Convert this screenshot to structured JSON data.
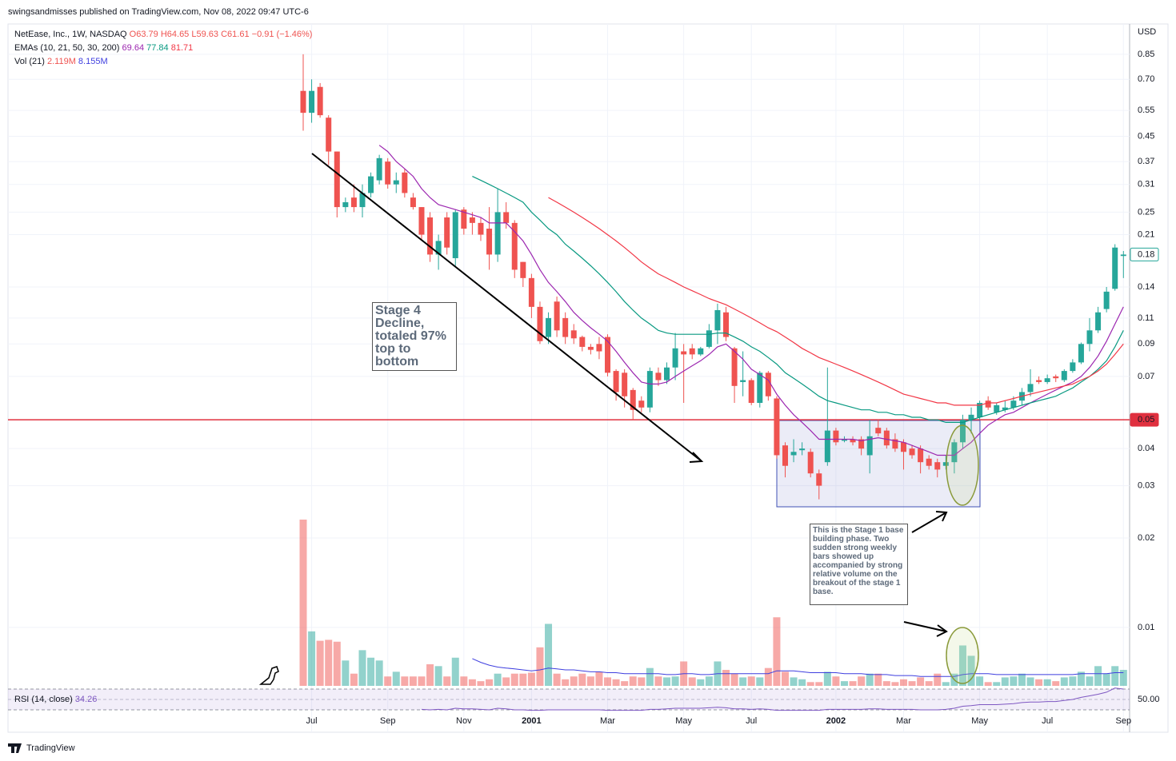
{
  "header": "swingsandmisses published on TradingView.com, Nov 08, 2022 09:47 UTC-6",
  "footer": "TradingView",
  "chart_data": {
    "type": "candlestick",
    "log_scale": true,
    "grid": true,
    "currency": "USD",
    "legend": {
      "symbol": "NetEase, Inc., 1W, NASDAQ",
      "open": "O63.79",
      "high": "H64.65",
      "low": "L59.63",
      "close": "C61.61",
      "change": "−0.91 (−1.46%)",
      "emas": "EMAs (10, 21, 50, 30, 200)",
      "volume": "Vol (21)",
      "volume_values": [
        "2.119M",
        "8.155M"
      ]
    },
    "up_color": "#26a69a",
    "down_color": "#ef5350",
    "ylim": [
      0.00628,
      1.075
    ],
    "yticks": [
      0.85,
      {
        "value": 0.7,
        "label": "0.70"
      },
      0.55,
      0.45,
      0.37,
      0.31,
      0.25,
      0.21,
      0.14,
      0.11,
      0.09,
      0.07,
      0.04,
      0.03,
      0.02,
      0.01
    ],
    "hline": 0.05,
    "last_price": 0.18,
    "categories": [
      null,
      "Jul",
      null,
      null,
      null,
      null,
      null,
      null,
      null,
      null,
      "Sep",
      null,
      null,
      null,
      null,
      null,
      null,
      null,
      null,
      "Nov",
      null,
      null,
      null,
      null,
      null,
      null,
      null,
      "2001",
      null,
      null,
      null,
      null,
      null,
      null,
      null,
      null,
      "Mar",
      null,
      null,
      null,
      null,
      null,
      null,
      null,
      null,
      "May",
      null,
      null,
      null,
      null,
      null,
      null,
      null,
      "Jul",
      null,
      null,
      null,
      null,
      null,
      null,
      null,
      null,
      null,
      "2002",
      null,
      null,
      null,
      null,
      null,
      null,
      null,
      "Mar",
      null,
      null,
      null,
      null,
      null,
      null,
      null,
      null,
      "May",
      null,
      null,
      null,
      null,
      null,
      null,
      null,
      "Jul",
      null,
      null,
      null,
      null,
      null,
      null,
      null,
      null,
      "Sep"
    ],
    "open": [
      0.64,
      0.54,
      0.66,
      0.52,
      0.4,
      0.26,
      0.28,
      0.26,
      0.29,
      0.32,
      0.37,
      0.31,
      0.34,
      0.28,
      0.26,
      0.24,
      0.18,
      0.24,
      0.175,
      0.255,
      0.24,
      0.23,
      0.22,
      0.18,
      0.25,
      0.23,
      0.17,
      0.15,
      0.12,
      0.095,
      0.125,
      0.11,
      0.1,
      0.095,
      0.088,
      0.09,
      0.095,
      0.073,
      0.072,
      0.063,
      0.058,
      0.055,
      0.072,
      0.068,
      0.075,
      0.085,
      0.087,
      0.083,
      0.088,
      0.1,
      0.115,
      0.087,
      0.067,
      0.068,
      0.057,
      0.072,
      0.059,
      0.041,
      0.038,
      0.0395,
      0.039,
      0.033,
      0.036,
      0.046,
      0.0425,
      0.043,
      0.043,
      0.038,
      0.047,
      0.046,
      0.043,
      0.042,
      0.04,
      0.04,
      0.037,
      0.036,
      0.035,
      0.036,
      0.042,
      0.05,
      0.051,
      0.058,
      0.053,
      0.054,
      0.055,
      0.058,
      0.062,
      0.068,
      0.067,
      0.07,
      0.068,
      0.073,
      0.078,
      0.09,
      0.1,
      0.118,
      0.138,
      0.178
    ],
    "high": [
      0.85,
      0.7,
      0.68,
      0.53,
      0.4,
      0.28,
      0.31,
      0.31,
      0.34,
      0.39,
      0.38,
      0.34,
      0.35,
      0.29,
      0.26,
      0.25,
      0.21,
      0.25,
      0.255,
      0.26,
      0.25,
      0.24,
      0.26,
      0.3,
      0.27,
      0.235,
      0.17,
      0.155,
      0.125,
      0.115,
      0.13,
      0.115,
      0.105,
      0.096,
      0.09,
      0.095,
      0.097,
      0.074,
      0.074,
      0.064,
      0.06,
      0.075,
      0.075,
      0.078,
      0.098,
      0.09,
      0.09,
      0.088,
      0.105,
      0.123,
      0.12,
      0.088,
      0.085,
      0.069,
      0.073,
      0.073,
      0.06,
      0.042,
      0.043,
      0.042,
      0.04,
      0.034,
      0.075,
      0.047,
      0.044,
      0.044,
      0.044,
      0.05,
      0.05,
      0.047,
      0.045,
      0.043,
      0.041,
      0.041,
      0.038,
      0.037,
      0.038,
      0.043,
      0.052,
      0.055,
      0.058,
      0.06,
      0.057,
      0.058,
      0.06,
      0.064,
      0.074,
      0.07,
      0.071,
      0.071,
      0.074,
      0.08,
      0.091,
      0.11,
      0.12,
      0.14,
      0.195,
      0.185
    ],
    "low": [
      0.47,
      0.5,
      0.52,
      0.36,
      0.24,
      0.25,
      0.25,
      0.24,
      0.28,
      0.31,
      0.3,
      0.29,
      0.28,
      0.255,
      0.2,
      0.17,
      0.16,
      0.18,
      0.165,
      0.21,
      0.21,
      0.2,
      0.16,
      0.17,
      0.22,
      0.15,
      0.14,
      0.11,
      0.09,
      0.09,
      0.095,
      0.09,
      0.09,
      0.085,
      0.083,
      0.08,
      0.07,
      0.058,
      0.055,
      0.05,
      0.053,
      0.053,
      0.065,
      0.066,
      0.068,
      0.057,
      0.08,
      0.082,
      0.087,
      0.09,
      0.092,
      0.057,
      0.06,
      0.056,
      0.055,
      0.058,
      0.037,
      0.032,
      0.036,
      0.038,
      0.032,
      0.027,
      0.035,
      0.041,
      0.042,
      0.041,
      0.038,
      0.033,
      0.044,
      0.04,
      0.039,
      0.034,
      0.037,
      0.033,
      0.034,
      0.032,
      0.034,
      0.033,
      0.04,
      0.045,
      0.05,
      0.054,
      0.052,
      0.053,
      0.054,
      0.056,
      0.06,
      0.066,
      0.066,
      0.067,
      0.067,
      0.072,
      0.077,
      0.085,
      0.098,
      0.115,
      0.136,
      0.15
    ],
    "close": [
      0.54,
      0.64,
      0.53,
      0.4,
      0.26,
      0.27,
      0.26,
      0.29,
      0.33,
      0.38,
      0.31,
      0.32,
      0.29,
      0.26,
      0.21,
      0.18,
      0.2,
      0.19,
      0.25,
      0.22,
      0.23,
      0.21,
      0.18,
      0.25,
      0.23,
      0.16,
      0.15,
      0.12,
      0.092,
      0.11,
      0.1,
      0.095,
      0.094,
      0.088,
      0.086,
      0.085,
      0.072,
      0.062,
      0.06,
      0.054,
      0.055,
      0.073,
      0.068,
      0.075,
      0.087,
      0.083,
      0.083,
      0.087,
      0.1,
      0.117,
      0.095,
      0.065,
      0.068,
      0.057,
      0.072,
      0.06,
      0.038,
      0.035,
      0.039,
      0.04,
      0.033,
      0.03,
      0.046,
      0.042,
      0.043,
      0.042,
      0.04,
      0.044,
      0.045,
      0.041,
      0.04,
      0.039,
      0.038,
      0.036,
      0.035,
      0.034,
      0.036,
      0.042,
      0.05,
      0.052,
      0.057,
      0.055,
      0.056,
      0.055,
      0.058,
      0.062,
      0.066,
      0.067,
      0.069,
      0.069,
      0.073,
      0.078,
      0.09,
      0.1,
      0.115,
      0.135,
      0.19,
      0.18
    ],
    "volume": [
      17.7,
      5.8,
      4.8,
      4.9,
      4.7,
      2.7,
      1.3,
      3.8,
      3.0,
      2.7,
      1.0,
      1.5,
      1.0,
      1.0,
      1.0,
      2.3,
      2.1,
      1.0,
      3.0,
      1.0,
      0.7,
      0.5,
      0.7,
      1.3,
      0.9,
      1.3,
      1.3,
      1.4,
      4.1,
      6.6,
      1.3,
      0.7,
      1.0,
      1.3,
      1.0,
      1.5,
      0.9,
      0.7,
      0.5,
      1.0,
      0.9,
      1.9,
      1.0,
      0.9,
      1.0,
      2.6,
      0.9,
      0.7,
      1.0,
      2.6,
      1.7,
      1.3,
      0.9,
      1.0,
      0.9,
      1.9,
      7.3,
      1.5,
      0.9,
      0.7,
      0.4,
      0.4,
      1.5,
      1.0,
      0.5,
      0.5,
      1.0,
      1.3,
      1.3,
      0.5,
      0.4,
      0.7,
      0.5,
      0.9,
      0.5,
      1.3,
      0.4,
      1.3,
      4.3,
      3.2,
      1.0,
      0.4,
      0.4,
      0.9,
      1.0,
      1.3,
      0.9,
      0.7,
      0.7,
      0.5,
      0.9,
      1.0,
      1.5,
      1.0,
      2.1,
      1.3,
      2.1,
      1.7
    ],
    "volume_ma": {
      "color": "#3f3fdf",
      "values": [
        null,
        null,
        null,
        null,
        null,
        null,
        null,
        null,
        null,
        null,
        null,
        null,
        null,
        null,
        null,
        null,
        null,
        null,
        null,
        null,
        2.9,
        2.5,
        2.2,
        2.0,
        1.9,
        1.8,
        1.7,
        1.6,
        1.7,
        1.9,
        1.8,
        1.7,
        1.7,
        1.6,
        1.5,
        1.5,
        1.4,
        1.4,
        1.3,
        1.3,
        1.3,
        1.3,
        1.3,
        1.2,
        1.2,
        1.3,
        1.3,
        1.2,
        1.2,
        1.3,
        1.3,
        1.3,
        1.3,
        1.3,
        1.3,
        1.3,
        1.6,
        1.6,
        1.6,
        1.5,
        1.4,
        1.4,
        1.4,
        1.4,
        1.3,
        1.3,
        1.3,
        1.2,
        1.2,
        1.2,
        1.1,
        1.1,
        1.1,
        1.0,
        1.0,
        1.0,
        1.0,
        1.0,
        1.2,
        1.3,
        1.3,
        1.3,
        1.2,
        1.2,
        1.2,
        1.2,
        1.2,
        1.2,
        1.2,
        1.2,
        1.2,
        1.2,
        1.3,
        1.3,
        1.3,
        1.3,
        1.4,
        1.4
      ]
    },
    "emas": [
      {
        "color": "#9c27b0",
        "last": 69.64,
        "values": [
          null,
          null,
          null,
          null,
          null,
          null,
          null,
          null,
          null,
          0.42,
          0.4,
          0.37,
          0.35,
          0.33,
          0.3,
          0.28,
          0.265,
          0.26,
          0.255,
          0.25,
          0.245,
          0.24,
          0.23,
          0.23,
          0.23,
          0.215,
          0.2,
          0.18,
          0.16,
          0.145,
          0.135,
          0.125,
          0.115,
          0.108,
          0.102,
          0.097,
          0.092,
          0.085,
          0.078,
          0.072,
          0.067,
          0.066,
          0.066,
          0.067,
          0.07,
          0.073,
          0.076,
          0.079,
          0.083,
          0.088,
          0.09,
          0.085,
          0.08,
          0.074,
          0.071,
          0.068,
          0.061,
          0.056,
          0.052,
          0.049,
          0.046,
          0.043,
          0.043,
          0.043,
          0.043,
          0.043,
          0.0425,
          0.043,
          0.0435,
          0.043,
          0.0425,
          0.042,
          0.041,
          0.04,
          0.039,
          0.038,
          0.038,
          0.038,
          0.04,
          0.042,
          0.045,
          0.048,
          0.05,
          0.052,
          0.053,
          0.055,
          0.057,
          0.059,
          0.061,
          0.063,
          0.065,
          0.067,
          0.07,
          0.075,
          0.082,
          0.092,
          0.105,
          0.12
        ]
      },
      {
        "color": "#089981",
        "last": 77.84,
        "values": [
          null,
          null,
          null,
          null,
          null,
          null,
          null,
          null,
          null,
          null,
          null,
          null,
          null,
          null,
          null,
          null,
          null,
          null,
          null,
          null,
          0.33,
          0.32,
          0.31,
          0.3,
          0.29,
          0.28,
          0.27,
          0.25,
          0.235,
          0.22,
          0.21,
          0.195,
          0.185,
          0.175,
          0.165,
          0.155,
          0.145,
          0.135,
          0.125,
          0.117,
          0.11,
          0.105,
          0.1,
          0.098,
          0.097,
          0.097,
          0.097,
          0.097,
          0.097,
          0.098,
          0.098,
          0.095,
          0.092,
          0.088,
          0.085,
          0.081,
          0.077,
          0.072,
          0.069,
          0.066,
          0.063,
          0.06,
          0.058,
          0.057,
          0.056,
          0.055,
          0.054,
          0.054,
          0.053,
          0.053,
          0.052,
          0.052,
          0.051,
          0.051,
          0.05,
          0.05,
          0.049,
          0.049,
          0.049,
          0.05,
          0.051,
          0.052,
          0.053,
          0.054,
          0.055,
          0.056,
          0.057,
          0.058,
          0.059,
          0.06,
          0.062,
          0.064,
          0.067,
          0.07,
          0.074,
          0.079,
          0.088,
          0.1
        ]
      },
      {
        "color": "#f23645",
        "last": 81.71,
        "values": [
          null,
          null,
          null,
          null,
          null,
          null,
          null,
          null,
          null,
          null,
          null,
          null,
          null,
          null,
          null,
          null,
          null,
          null,
          null,
          null,
          null,
          null,
          null,
          null,
          null,
          null,
          null,
          null,
          null,
          0.28,
          0.27,
          0.26,
          0.25,
          0.24,
          0.23,
          0.22,
          0.21,
          0.2,
          0.19,
          0.18,
          0.17,
          0.162,
          0.155,
          0.15,
          0.145,
          0.14,
          0.136,
          0.132,
          0.128,
          0.125,
          0.122,
          0.118,
          0.114,
          0.11,
          0.106,
          0.102,
          0.099,
          0.095,
          0.091,
          0.087,
          0.084,
          0.081,
          0.079,
          0.077,
          0.075,
          0.073,
          0.071,
          0.069,
          0.067,
          0.065,
          0.063,
          0.061,
          0.06,
          0.059,
          0.058,
          0.057,
          0.057,
          0.056,
          0.056,
          0.056,
          0.056,
          0.057,
          0.057,
          0.058,
          0.059,
          0.06,
          0.061,
          0.062,
          0.063,
          0.064,
          0.065,
          0.066,
          0.068,
          0.07,
          0.073,
          0.077,
          0.083,
          0.09
        ]
      }
    ],
    "rsi": {
      "label": "RSI (14, close)",
      "last": 34.26,
      "color": "#7e57c2",
      "ylim": [
        30,
        70
      ],
      "ticks": [
        {
          "value": 50,
          "label": "50.00"
        }
      ],
      "values": [
        null,
        null,
        null,
        null,
        null,
        null,
        null,
        null,
        null,
        null,
        null,
        null,
        null,
        null,
        31,
        30,
        31,
        30,
        33,
        32,
        32,
        31,
        30,
        33,
        32,
        30,
        30,
        29,
        29,
        30,
        30,
        30,
        30,
        30,
        30,
        30,
        29,
        29,
        29,
        29,
        29,
        31,
        31,
        32,
        33,
        33,
        33,
        33,
        34,
        35,
        34,
        32,
        32,
        31,
        32,
        31,
        29,
        29,
        29,
        29,
        29,
        29,
        31,
        31,
        31,
        31,
        31,
        32,
        32,
        31,
        31,
        31,
        31,
        30,
        30,
        30,
        31,
        33,
        37,
        38,
        40,
        40,
        40,
        41,
        42,
        44,
        45,
        45,
        46,
        46,
        48,
        50,
        54,
        57,
        60,
        64,
        72,
        70
      ]
    },
    "annotations": {
      "stage4": "Stage 4 Decline, totaled 97% top to bottom",
      "stage1": "This is the Stage 1 base building phase. Two sudden strong weekly bars showed up accompanied by strong relative volume on the breakout of the stage 1 base."
    }
  }
}
